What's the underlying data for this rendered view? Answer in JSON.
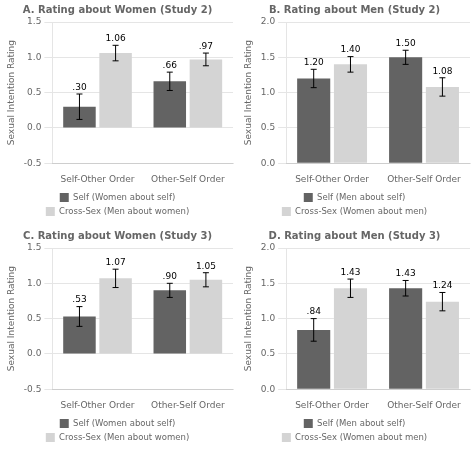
{
  "chart_data": [
    {
      "type": "bar",
      "title": "A. Rating about Women (Study 2)",
      "y_label": "Sexual Intention Rating",
      "categories": [
        "Self-Other Order",
        "Other-Self Order"
      ],
      "series": [
        {
          "name": "Self (Women about self)",
          "color": "#636363",
          "values": [
            0.3,
            0.66
          ],
          "errors": [
            0.18,
            0.13
          ],
          "value_labels": [
            ".30",
            ".66"
          ]
        },
        {
          "name": "Cross-Sex (Men about women)",
          "color": "#d4d4d4",
          "values": [
            1.06,
            0.97
          ],
          "errors": [
            0.11,
            0.09
          ],
          "value_labels": [
            "1.06",
            ".97"
          ]
        }
      ],
      "ylim": [
        -0.5,
        1.5
      ],
      "yticks": [
        -0.5,
        {
          "value": 0,
          "label": "0.0"
        },
        0.5,
        {
          "value": 1,
          "label": "1.0"
        },
        1.5
      ],
      "grid": true,
      "data_labels": true,
      "legend": "bottom"
    },
    {
      "type": "bar",
      "title": "B. Rating about Men (Study 2)",
      "y_label": "Sexual Intention Rating",
      "categories": [
        "Self-Other Order",
        "Other-Self Order"
      ],
      "series": [
        {
          "name": "Self (Men about self)",
          "color": "#636363",
          "values": [
            1.2,
            1.5
          ],
          "errors": [
            0.13,
            0.1
          ],
          "value_labels": [
            "1.20",
            "1.50"
          ]
        },
        {
          "name": "Cross-Sex (Women about men)",
          "color": "#d4d4d4",
          "values": [
            1.4,
            1.08
          ],
          "errors": [
            0.11,
            0.13
          ],
          "value_labels": [
            "1.40",
            "1.08"
          ]
        }
      ],
      "ylim": [
        0.0,
        2.0
      ],
      "yticks": [
        {
          "value": 0,
          "label": "0.0"
        },
        0.5,
        {
          "value": 1,
          "label": "1.0"
        },
        1.5,
        {
          "value": 2,
          "label": "2.0"
        }
      ],
      "grid": true,
      "data_labels": true,
      "legend": "bottom"
    },
    {
      "type": "bar",
      "title": "C. Rating about Women (Study 3)",
      "y_label": "Sexual Intention Rating",
      "categories": [
        "Self-Other Order",
        "Other-Self Order"
      ],
      "series": [
        {
          "name": "Self (Women about self)",
          "color": "#636363",
          "values": [
            0.53,
            0.9
          ],
          "errors": [
            0.14,
            0.1
          ],
          "value_labels": [
            ".53",
            ".90"
          ]
        },
        {
          "name": "Cross-Sex (Men about women)",
          "color": "#d4d4d4",
          "values": [
            1.07,
            1.05
          ],
          "errors": [
            0.13,
            0.1
          ],
          "value_labels": [
            "1.07",
            "1.05"
          ]
        }
      ],
      "ylim": [
        -0.5,
        1.5
      ],
      "yticks": [
        -0.5,
        {
          "value": 0,
          "label": "0.0"
        },
        0.5,
        {
          "value": 1,
          "label": "1.0"
        },
        1.5
      ],
      "grid": true,
      "data_labels": true,
      "legend": "bottom"
    },
    {
      "type": "bar",
      "title": "D. Rating about Men (Study 3)",
      "y_label": "Sexual Intention Rating",
      "categories": [
        "Self-Other Order",
        "Other-Self Order"
      ],
      "series": [
        {
          "name": "Self (Men about self)",
          "color": "#636363",
          "values": [
            0.84,
            1.43
          ],
          "errors": [
            0.16,
            0.11
          ],
          "value_labels": [
            ".84",
            "1.43"
          ]
        },
        {
          "name": "Cross-Sex (Women about men)",
          "color": "#d4d4d4",
          "values": [
            1.43,
            1.24
          ],
          "errors": [
            0.13,
            0.13
          ],
          "value_labels": [
            "1.43",
            "1.24"
          ]
        }
      ],
      "ylim": [
        0.0,
        2.0
      ],
      "yticks": [
        {
          "value": 0,
          "label": "0.0"
        },
        0.5,
        {
          "value": 1,
          "label": "1.0"
        },
        1.5,
        {
          "value": 2,
          "label": "2.0"
        }
      ],
      "grid": true,
      "data_labels": true,
      "legend": "bottom"
    }
  ]
}
